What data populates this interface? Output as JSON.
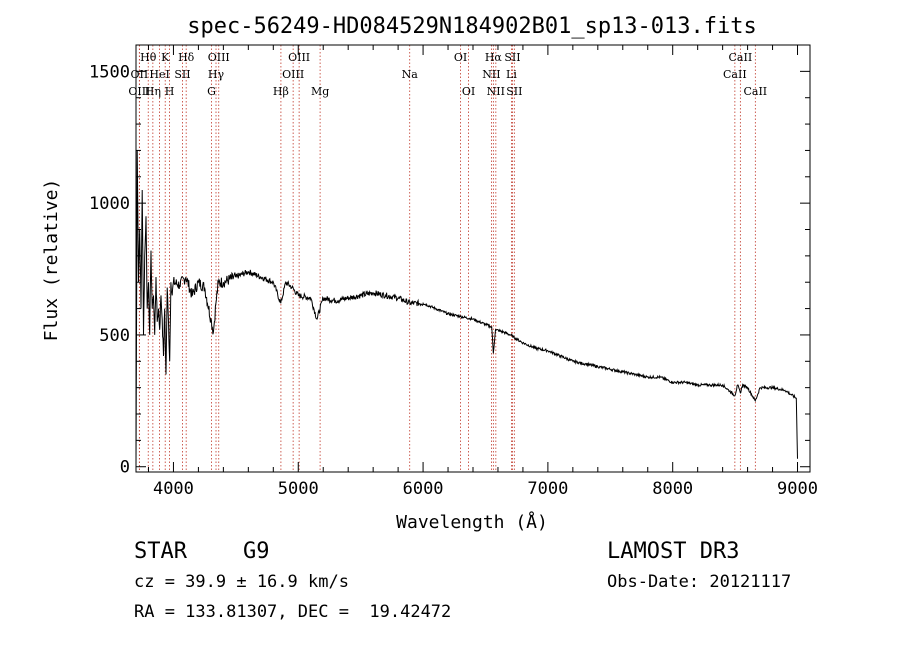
{
  "chart_data": {
    "type": "line",
    "title": "spec-56249-HD084529N184902B01_sp13-013.fits",
    "xlabel": "Wavelength (Å)",
    "ylabel": "Flux (relative)",
    "xlim": [
      3700,
      9100
    ],
    "ylim": [
      -20,
      1600
    ],
    "xticks": [
      4000,
      5000,
      6000,
      7000,
      8000,
      9000
    ],
    "yticks": [
      0,
      500,
      1000,
      1500
    ],
    "grid": false,
    "series": [
      {
        "name": "flux",
        "x": [
          3700,
          3710,
          3720,
          3730,
          3740,
          3750,
          3760,
          3770,
          3780,
          3790,
          3800,
          3810,
          3820,
          3830,
          3840,
          3850,
          3860,
          3870,
          3880,
          3890,
          3900,
          3910,
          3920,
          3930,
          3940,
          3950,
          3960,
          3970,
          3980,
          3990,
          4000,
          4050,
          4100,
          4150,
          4200,
          4250,
          4300,
          4320,
          4340,
          4360,
          4400,
          4500,
          4600,
          4700,
          4800,
          4860,
          4900,
          4950,
          5000,
          5100,
          5150,
          5200,
          5300,
          5400,
          5500,
          5600,
          5700,
          5800,
          5900,
          6000,
          6100,
          6200,
          6300,
          6400,
          6500,
          6550,
          6563,
          6580,
          6650,
          6700,
          6800,
          6900,
          7000,
          7100,
          7200,
          7300,
          7400,
          7500,
          7600,
          7700,
          7800,
          7900,
          8000,
          8100,
          8200,
          8300,
          8400,
          8498,
          8520,
          8542,
          8560,
          8600,
          8662,
          8700,
          8800,
          8900,
          8990,
          9000
        ],
        "values": [
          10,
          1200,
          700,
          900,
          600,
          1050,
          500,
          800,
          950,
          600,
          700,
          500,
          820,
          600,
          650,
          500,
          720,
          550,
          600,
          520,
          650,
          560,
          420,
          600,
          350,
          680,
          550,
          400,
          700,
          650,
          700,
          690,
          720,
          650,
          700,
          680,
          560,
          510,
          620,
          700,
          700,
          720,
          740,
          720,
          700,
          620,
          700,
          680,
          650,
          640,
          560,
          640,
          630,
          640,
          650,
          660,
          650,
          640,
          620,
          620,
          600,
          580,
          570,
          560,
          540,
          530,
          430,
          520,
          510,
          500,
          470,
          450,
          440,
          420,
          400,
          390,
          380,
          370,
          360,
          350,
          340,
          340,
          320,
          320,
          310,
          310,
          310,
          270,
          310,
          280,
          310,
          300,
          250,
          300,
          300,
          290,
          260,
          30
        ]
      }
    ],
    "lines": [
      {
        "label": "Hθ",
        "x": 3798,
        "row": 1
      },
      {
        "label": "OII",
        "x": 3727,
        "row": 2
      },
      {
        "label": "OIII",
        "x": 3727,
        "row": 3
      },
      {
        "label": "K",
        "x": 3934,
        "row": 1
      },
      {
        "label": "HeI",
        "x": 3889,
        "row": 2
      },
      {
        "label": "Hη",
        "x": 3835,
        "row": 3
      },
      {
        "label": "Hδ",
        "x": 4102,
        "row": 1
      },
      {
        "label": "SII",
        "x": 4072,
        "row": 2
      },
      {
        "label": "H",
        "x": 3969,
        "row": 3
      },
      {
        "label": "OIII",
        "x": 4363,
        "row": 1
      },
      {
        "label": "Hγ",
        "x": 4341,
        "row": 2
      },
      {
        "label": "G",
        "x": 4305,
        "row": 3
      },
      {
        "label": "OIII",
        "x": 5007,
        "row": 1
      },
      {
        "label": "OIII",
        "x": 4959,
        "row": 2
      },
      {
        "label": "Hβ",
        "x": 4861,
        "row": 3
      },
      {
        "label": "Mg",
        "x": 5175,
        "row": 3
      },
      {
        "label": "Na",
        "x": 5893,
        "row": 2
      },
      {
        "label": "OI",
        "x": 6300,
        "row": 1
      },
      {
        "label": "OI",
        "x": 6364,
        "row": 3
      },
      {
        "label": "Hα",
        "x": 6563,
        "row": 1
      },
      {
        "label": "SII",
        "x": 6716,
        "row": 1
      },
      {
        "label": "NII",
        "x": 6548,
        "row": 2
      },
      {
        "label": "Li",
        "x": 6708,
        "row": 2
      },
      {
        "label": "NII",
        "x": 6583,
        "row": 3
      },
      {
        "label": "SII",
        "x": 6731,
        "row": 3
      },
      {
        "label": "CaII",
        "x": 8542,
        "row": 1
      },
      {
        "label": "CaII",
        "x": 8498,
        "row": 2
      },
      {
        "label": "CaII",
        "x": 8662,
        "row": 3
      }
    ]
  },
  "info": {
    "object_class": "STAR",
    "subclass": "G9",
    "survey": "LAMOST DR3",
    "cz": "cz = 39.9 ± 16.9 km/s",
    "obs_date": "Obs-Date: 20121117",
    "coords": "RA = 133.81307, DEC =  19.42472"
  }
}
